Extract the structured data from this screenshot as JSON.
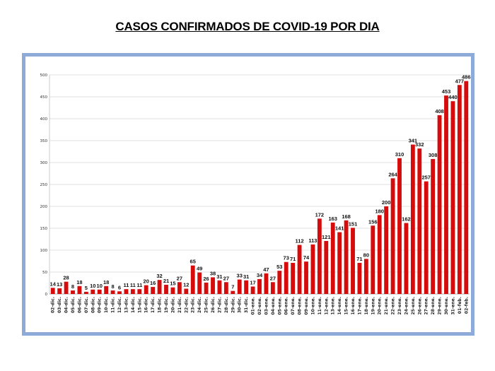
{
  "title": "CASOS CONFIRMADOS DE COVID-19 POR DIA",
  "chart_data": {
    "type": "bar",
    "title": "CASOS CONFIRMADOS DE COVID-19 POR DIA",
    "xlabel": "",
    "ylabel": "",
    "ylim": [
      0,
      500
    ],
    "yticks": [
      0,
      50,
      100,
      150,
      200,
      250,
      300,
      350,
      400,
      450,
      500
    ],
    "grid": true,
    "bar_color": "#d60b0b",
    "categories": [
      "02-dic.",
      "03-dic.",
      "04-dic.",
      "05-dic.",
      "06-dic.",
      "07-dic.",
      "08-dic.",
      "09-dic.",
      "10-dic.",
      "11-dic.",
      "12-dic.",
      "13-dic.",
      "14-dic.",
      "15-dic.",
      "16-dic.",
      "17-dic.",
      "18-dic.",
      "19-dic.",
      "20-dic.",
      "21-dic.",
      "22-dic.",
      "23-dic.",
      "24-dic.",
      "25-dic.",
      "26-dic.",
      "27-dic.",
      "28-dic.",
      "29-dic.",
      "30-dic.",
      "31-dic.",
      "01-ene.",
      "02-ene.",
      "03-ene.",
      "04-ene.",
      "05-ene.",
      "06-ene.",
      "07-ene.",
      "08-ene.",
      "09-ene.",
      "10-ene.",
      "11-ene.",
      "12-ene.",
      "13-ene.",
      "14-ene.",
      "15-ene.",
      "16-ene.",
      "17-ene.",
      "18-ene.",
      "19-ene.",
      "20-ene.",
      "21-ene.",
      "22-ene.",
      "23-ene.",
      "24-ene.",
      "25-ene.",
      "26-ene.",
      "27-ene.",
      "28-ene.",
      "29-ene.",
      "30-ene.",
      "31-ene.",
      "01-feb.",
      "02-feb."
    ],
    "values": [
      14,
      13,
      28,
      8,
      18,
      5,
      10,
      10,
      18,
      8,
      6,
      11,
      11,
      11,
      20,
      16,
      32,
      21,
      15,
      27,
      12,
      65,
      49,
      26,
      38,
      31,
      27,
      7,
      33,
      31,
      17,
      34,
      47,
      27,
      53,
      73,
      71,
      112,
      74,
      113,
      172,
      121,
      163,
      141,
      168,
      151,
      71,
      80,
      156,
      180,
      200,
      264,
      310,
      162,
      341,
      332,
      257,
      308,
      408,
      453,
      440,
      477,
      486
    ]
  }
}
